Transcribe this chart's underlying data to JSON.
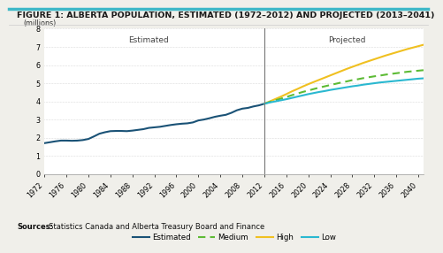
{
  "title": "FIGURE 1: ALBERTA POPULATION, ESTIMATED (1972–2012) AND PROJECTED (2013–2041)",
  "ylabel": "(millions)",
  "ylim": [
    0,
    8
  ],
  "yticks": [
    0,
    1,
    2,
    3,
    4,
    5,
    6,
    7,
    8
  ],
  "source_bold": "Sources:",
  "source_rest": "  Statistics Canada and Alberta Treasury Board and Finance",
  "estimated_label": "Estimated",
  "projected_label": "Projected",
  "divider_year": 2012,
  "estimated_years": [
    1972,
    1973,
    1974,
    1975,
    1976,
    1977,
    1978,
    1979,
    1980,
    1981,
    1982,
    1983,
    1984,
    1985,
    1986,
    1987,
    1988,
    1989,
    1990,
    1991,
    1992,
    1993,
    1994,
    1995,
    1996,
    1997,
    1998,
    1999,
    2000,
    2001,
    2002,
    2003,
    2004,
    2005,
    2006,
    2007,
    2008,
    2009,
    2010,
    2011,
    2012
  ],
  "estimated_values": [
    1.7,
    1.75,
    1.8,
    1.84,
    1.84,
    1.83,
    1.84,
    1.87,
    1.93,
    2.07,
    2.22,
    2.3,
    2.36,
    2.37,
    2.37,
    2.36,
    2.39,
    2.43,
    2.47,
    2.54,
    2.57,
    2.6,
    2.65,
    2.7,
    2.74,
    2.77,
    2.79,
    2.84,
    2.95,
    3.0,
    3.07,
    3.15,
    3.21,
    3.26,
    3.37,
    3.51,
    3.6,
    3.64,
    3.72,
    3.78,
    3.87
  ],
  "projected_years": [
    2012,
    2013,
    2014,
    2015,
    2016,
    2017,
    2018,
    2019,
    2020,
    2021,
    2022,
    2023,
    2024,
    2025,
    2026,
    2027,
    2028,
    2029,
    2030,
    2031,
    2032,
    2033,
    2034,
    2035,
    2036,
    2037,
    2038,
    2039,
    2040,
    2041
  ],
  "medium_values": [
    3.87,
    3.97,
    4.06,
    4.15,
    4.24,
    4.34,
    4.43,
    4.52,
    4.6,
    4.68,
    4.76,
    4.83,
    4.9,
    4.97,
    5.04,
    5.1,
    5.17,
    5.22,
    5.28,
    5.33,
    5.38,
    5.42,
    5.47,
    5.51,
    5.55,
    5.59,
    5.63,
    5.66,
    5.69,
    5.72
  ],
  "high_values": [
    3.87,
    4.0,
    4.13,
    4.26,
    4.4,
    4.55,
    4.68,
    4.82,
    4.95,
    5.07,
    5.19,
    5.31,
    5.43,
    5.55,
    5.67,
    5.79,
    5.9,
    6.01,
    6.12,
    6.22,
    6.32,
    6.42,
    6.52,
    6.61,
    6.7,
    6.79,
    6.88,
    6.96,
    7.04,
    7.12
  ],
  "low_values": [
    3.87,
    3.94,
    4.0,
    4.06,
    4.12,
    4.19,
    4.26,
    4.33,
    4.4,
    4.46,
    4.52,
    4.57,
    4.63,
    4.68,
    4.73,
    4.78,
    4.83,
    4.87,
    4.92,
    4.96,
    5.0,
    5.04,
    5.07,
    5.1,
    5.13,
    5.16,
    5.19,
    5.22,
    5.25,
    5.27
  ],
  "estimated_color": "#1a5276",
  "medium_color": "#5dbb35",
  "high_color": "#f0c020",
  "low_color": "#2ab8d0",
  "divider_color": "#777777",
  "bg_color": "#f0efea",
  "plot_bg_color": "#ffffff",
  "title_bar_color": "#3eb8c8",
  "xtick_years": [
    1972,
    1976,
    1980,
    1984,
    1988,
    1992,
    1996,
    2000,
    2004,
    2008,
    2012,
    2016,
    2020,
    2024,
    2028,
    2032,
    2036,
    2040
  ],
  "title_fontsize": 6.8,
  "axis_fontsize": 5.8,
  "legend_fontsize": 6.2,
  "source_fontsize": 6.0
}
